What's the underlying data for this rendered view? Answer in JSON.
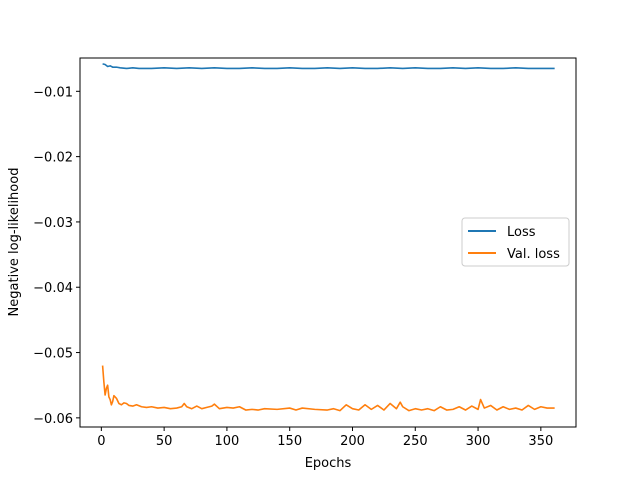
{
  "chart_data": {
    "type": "line",
    "title": "",
    "xlabel": "Epochs",
    "ylabel": "Negative log-likelihood",
    "xlim": [
      -17,
      378
    ],
    "ylim": [
      -0.0614,
      -0.0049
    ],
    "xticks": [
      0,
      50,
      100,
      150,
      200,
      250,
      300,
      350
    ],
    "xtick_labels": [
      "0",
      "50",
      "100",
      "150",
      "200",
      "250",
      "300",
      "350"
    ],
    "yticks": [
      -0.06,
      -0.05,
      -0.04,
      -0.03,
      -0.02,
      -0.01
    ],
    "ytick_labels": [
      "−0.06",
      "−0.05",
      "−0.04",
      "−0.03",
      "−0.02",
      "−0.01"
    ],
    "grid": false,
    "legend_position": "center-right",
    "series": [
      {
        "name": "Loss",
        "color": "#1f77b4",
        "x": [
          1,
          3,
          5,
          7,
          9,
          12,
          15,
          20,
          25,
          30,
          40,
          50,
          60,
          70,
          80,
          90,
          100,
          110,
          120,
          130,
          140,
          150,
          160,
          170,
          180,
          190,
          200,
          210,
          220,
          230,
          240,
          250,
          260,
          270,
          280,
          290,
          300,
          310,
          320,
          330,
          340,
          350,
          361
        ],
        "y": [
          -0.0058,
          -0.0059,
          -0.0062,
          -0.0061,
          -0.0063,
          -0.0063,
          -0.0064,
          -0.0065,
          -0.0064,
          -0.0065,
          -0.0065,
          -0.0064,
          -0.0065,
          -0.0064,
          -0.0065,
          -0.0064,
          -0.0065,
          -0.0065,
          -0.0064,
          -0.0065,
          -0.0065,
          -0.0064,
          -0.0065,
          -0.0065,
          -0.0064,
          -0.0065,
          -0.0064,
          -0.0065,
          -0.0065,
          -0.0064,
          -0.0065,
          -0.0064,
          -0.0065,
          -0.0065,
          -0.0064,
          -0.0065,
          -0.0064,
          -0.0065,
          -0.0065,
          -0.0064,
          -0.0065,
          -0.0065,
          -0.0065
        ]
      },
      {
        "name": "Val. loss",
        "color": "#ff7f0e",
        "x": [
          1,
          2,
          3,
          4,
          5,
          6,
          7,
          8,
          9,
          10,
          12,
          14,
          16,
          18,
          20,
          22,
          25,
          28,
          32,
          36,
          40,
          45,
          50,
          55,
          60,
          64,
          66,
          68,
          72,
          76,
          80,
          84,
          88,
          90,
          94,
          100,
          105,
          110,
          115,
          120,
          125,
          130,
          140,
          150,
          155,
          160,
          170,
          180,
          185,
          190,
          195,
          200,
          205,
          210,
          215,
          220,
          225,
          230,
          235,
          238,
          240,
          245,
          250,
          255,
          260,
          265,
          270,
          275,
          280,
          285,
          290,
          295,
          300,
          302,
          305,
          310,
          315,
          320,
          325,
          330,
          335,
          340,
          345,
          350,
          355,
          361
        ],
        "y": [
          -0.052,
          -0.0545,
          -0.0565,
          -0.0555,
          -0.055,
          -0.0568,
          -0.0572,
          -0.058,
          -0.0575,
          -0.0566,
          -0.057,
          -0.0578,
          -0.058,
          -0.0577,
          -0.0578,
          -0.0581,
          -0.0582,
          -0.058,
          -0.0583,
          -0.0584,
          -0.0583,
          -0.0585,
          -0.0584,
          -0.0586,
          -0.0585,
          -0.0583,
          -0.0578,
          -0.0583,
          -0.0586,
          -0.0582,
          -0.0586,
          -0.0584,
          -0.0582,
          -0.0579,
          -0.0586,
          -0.0584,
          -0.0585,
          -0.0583,
          -0.0588,
          -0.0587,
          -0.0588,
          -0.0586,
          -0.0587,
          -0.0585,
          -0.0588,
          -0.0585,
          -0.0587,
          -0.0588,
          -0.0586,
          -0.0589,
          -0.058,
          -0.0586,
          -0.0588,
          -0.058,
          -0.0587,
          -0.0581,
          -0.0588,
          -0.0578,
          -0.0586,
          -0.0576,
          -0.0583,
          -0.0589,
          -0.0586,
          -0.0588,
          -0.0586,
          -0.0589,
          -0.0583,
          -0.0588,
          -0.0587,
          -0.0583,
          -0.0588,
          -0.0582,
          -0.0587,
          -0.0572,
          -0.0585,
          -0.0581,
          -0.0588,
          -0.0583,
          -0.0587,
          -0.0585,
          -0.0588,
          -0.0581,
          -0.0587,
          -0.0583,
          -0.0585,
          -0.0585
        ]
      }
    ]
  }
}
